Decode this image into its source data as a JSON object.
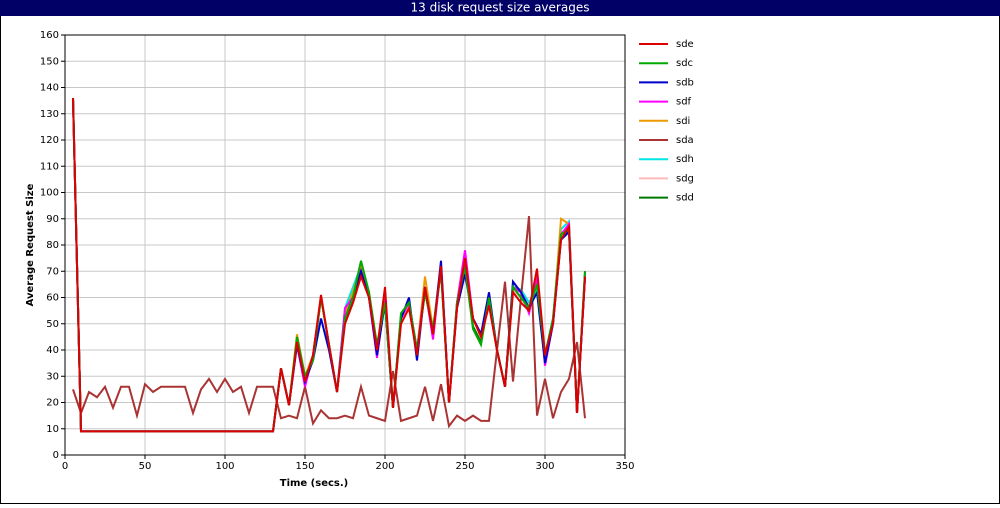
{
  "chart_data": {
    "type": "line",
    "title": "13 disk request size averages",
    "x_label": "Time (secs.)",
    "y_label": "Average Request Size",
    "xlim": [
      0,
      350
    ],
    "xticks": [
      0,
      50,
      100,
      150,
      200,
      250,
      300,
      350
    ],
    "ylim": [
      0,
      160
    ],
    "yticks": [
      0,
      10,
      20,
      30,
      40,
      50,
      60,
      70,
      80,
      90,
      100,
      110,
      120,
      130,
      140,
      150,
      160
    ],
    "grid": true,
    "legend": "right",
    "x": [
      5,
      10,
      15,
      20,
      25,
      30,
      35,
      40,
      45,
      50,
      55,
      60,
      65,
      70,
      75,
      80,
      85,
      90,
      95,
      100,
      105,
      110,
      115,
      120,
      125,
      130,
      135,
      140,
      145,
      150,
      155,
      160,
      165,
      170,
      175,
      180,
      185,
      190,
      195,
      200,
      205,
      210,
      215,
      220,
      225,
      230,
      235,
      240,
      245,
      250,
      255,
      260,
      265,
      270,
      275,
      280,
      285,
      290,
      295,
      300,
      305,
      310,
      315,
      320,
      325
    ],
    "series": [
      {
        "name": "sde",
        "color": "#dd0000",
        "values": [
          136,
          9,
          9,
          9,
          9,
          9,
          9,
          9,
          9,
          9,
          9,
          9,
          9,
          9,
          9,
          9,
          9,
          9,
          9,
          9,
          9,
          9,
          9,
          9,
          9,
          9,
          33,
          19,
          43,
          28,
          38,
          61,
          42,
          24,
          50,
          58,
          68,
          60,
          40,
          64,
          18,
          50,
          56,
          38,
          64,
          46,
          72,
          20,
          56,
          75,
          52,
          45,
          57,
          40,
          26,
          62,
          58,
          55,
          71,
          38,
          50,
          82,
          87,
          16,
          68
        ]
      },
      {
        "name": "sdc",
        "color": "#00aa00",
        "values": [
          136,
          9,
          9,
          9,
          9,
          9,
          9,
          9,
          9,
          9,
          9,
          9,
          9,
          9,
          9,
          9,
          9,
          9,
          9,
          9,
          9,
          9,
          9,
          9,
          9,
          9,
          33,
          19,
          45,
          30,
          36,
          60,
          42,
          24,
          52,
          60,
          74,
          62,
          42,
          58,
          18,
          54,
          58,
          40,
          62,
          48,
          70,
          20,
          58,
          72,
          48,
          42,
          60,
          40,
          26,
          64,
          60,
          56,
          65,
          38,
          52,
          84,
          86,
          16,
          70
        ]
      },
      {
        "name": "sdb",
        "color": "#0000cc",
        "values": [
          136,
          9,
          9,
          9,
          9,
          9,
          9,
          9,
          9,
          9,
          9,
          9,
          9,
          9,
          9,
          9,
          9,
          9,
          9,
          9,
          9,
          9,
          9,
          9,
          9,
          9,
          33,
          19,
          42,
          28,
          36,
          52,
          40,
          24,
          52,
          60,
          70,
          60,
          38,
          58,
          18,
          52,
          60,
          36,
          64,
          46,
          74,
          20,
          56,
          69,
          52,
          46,
          62,
          40,
          26,
          66,
          62,
          56,
          62,
          35,
          50,
          82,
          85,
          16,
          68
        ]
      },
      {
        "name": "sdf",
        "color": "#ff00ff",
        "values": [
          136,
          9,
          9,
          9,
          9,
          9,
          9,
          9,
          9,
          9,
          9,
          9,
          9,
          9,
          9,
          9,
          9,
          9,
          9,
          9,
          9,
          9,
          9,
          9,
          9,
          9,
          33,
          19,
          42,
          26,
          38,
          60,
          42,
          24,
          56,
          60,
          70,
          60,
          37,
          60,
          18,
          52,
          58,
          40,
          64,
          44,
          72,
          20,
          58,
          78,
          52,
          46,
          58,
          40,
          26,
          64,
          62,
          54,
          68,
          34,
          50,
          84,
          88,
          16,
          68
        ]
      },
      {
        "name": "sdi",
        "color": "#ee9900",
        "values": [
          136,
          9,
          9,
          9,
          9,
          9,
          9,
          9,
          9,
          9,
          9,
          9,
          9,
          9,
          9,
          9,
          9,
          9,
          9,
          9,
          9,
          9,
          9,
          9,
          9,
          9,
          33,
          19,
          46,
          30,
          38,
          60,
          42,
          24,
          54,
          62,
          72,
          62,
          40,
          60,
          18,
          52,
          58,
          40,
          68,
          48,
          72,
          20,
          58,
          74,
          52,
          46,
          58,
          40,
          26,
          66,
          62,
          56,
          68,
          38,
          50,
          90,
          88,
          16,
          68
        ]
      },
      {
        "name": "sda",
        "color": "#aa3333",
        "values": [
          25,
          16,
          24,
          22,
          26,
          18,
          26,
          26,
          15,
          27,
          24,
          26,
          26,
          26,
          26,
          16,
          25,
          29,
          24,
          29,
          24,
          26,
          16,
          26,
          26,
          26,
          14,
          15,
          14,
          26,
          12,
          17,
          14,
          14,
          15,
          14,
          26,
          15,
          14,
          13,
          32,
          13,
          14,
          15,
          26,
          13,
          27,
          11,
          15,
          13,
          15,
          13,
          13,
          40,
          66,
          28,
          60,
          91,
          15,
          29,
          14,
          24,
          29,
          43,
          14
        ]
      },
      {
        "name": "sdh",
        "color": "#00e5e5",
        "values": [
          136,
          9,
          9,
          9,
          9,
          9,
          9,
          9,
          9,
          9,
          9,
          9,
          9,
          9,
          9,
          9,
          9,
          9,
          9,
          9,
          9,
          9,
          9,
          9,
          9,
          9,
          33,
          19,
          44,
          28,
          38,
          60,
          42,
          24,
          56,
          64,
          72,
          60,
          40,
          60,
          18,
          52,
          58,
          40,
          64,
          48,
          72,
          20,
          58,
          76,
          52,
          46,
          58,
          40,
          26,
          64,
          63,
          58,
          64,
          38,
          52,
          86,
          89,
          16,
          68
        ]
      },
      {
        "name": "sdg",
        "color": "#ffbbbb",
        "values": [
          136,
          9,
          9,
          9,
          9,
          9,
          9,
          9,
          9,
          9,
          9,
          9,
          9,
          9,
          9,
          9,
          9,
          9,
          9,
          9,
          9,
          9,
          9,
          9,
          9,
          9,
          33,
          19,
          43,
          28,
          38,
          60,
          42,
          24,
          52,
          60,
          70,
          60,
          40,
          62,
          18,
          50,
          56,
          38,
          64,
          46,
          72,
          20,
          56,
          76,
          52,
          45,
          57,
          40,
          26,
          63,
          60,
          55,
          70,
          38,
          50,
          83,
          87,
          16,
          68
        ]
      },
      {
        "name": "sdd",
        "color": "#007700",
        "values": [
          136,
          9,
          9,
          9,
          9,
          9,
          9,
          9,
          9,
          9,
          9,
          9,
          9,
          9,
          9,
          9,
          9,
          9,
          9,
          9,
          9,
          9,
          9,
          9,
          9,
          9,
          33,
          19,
          44,
          29,
          37,
          60,
          42,
          24,
          52,
          60,
          72,
          61,
          41,
          58,
          18,
          53,
          58,
          40,
          62,
          47,
          71,
          20,
          57,
          72,
          49,
          43,
          59,
          40,
          26,
          63,
          60,
          56,
          66,
          38,
          51,
          83,
          86,
          16,
          70
        ]
      }
    ]
  }
}
